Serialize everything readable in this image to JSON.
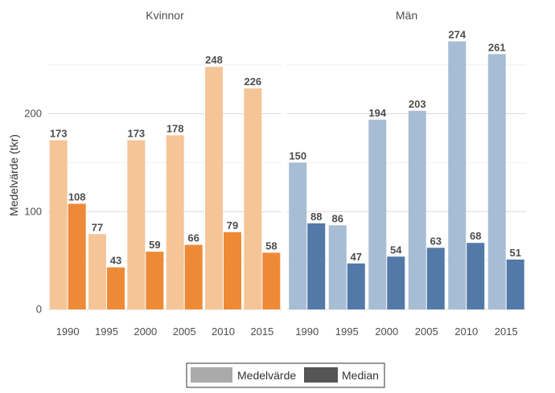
{
  "chart_data": {
    "type": "bar",
    "ylabel": "Medelvärde (tkr)",
    "ylim": [
      0,
      290
    ],
    "yticks": [
      0,
      100,
      200
    ],
    "categories": [
      "1990",
      "1995",
      "2000",
      "2005",
      "2010",
      "2015"
    ],
    "facets": [
      {
        "title": "Kvinnor",
        "colors": {
          "Medelvärde": "#f5c598",
          "Median": "#ee8a36"
        },
        "series": [
          {
            "name": "Medelvärde",
            "values": [
              173,
              77,
              173,
              178,
              248,
              226
            ]
          },
          {
            "name": "Median",
            "values": [
              108,
              43,
              59,
              66,
              79,
              58
            ]
          }
        ]
      },
      {
        "title": "Män",
        "colors": {
          "Medelvärde": "#a7bdd5",
          "Median": "#5279a8"
        },
        "series": [
          {
            "name": "Medelvärde",
            "values": [
              150,
              86,
              194,
              203,
              274,
              261
            ]
          },
          {
            "name": "Median",
            "values": [
              88,
              47,
              54,
              63,
              68,
              51
            ]
          }
        ]
      }
    ],
    "legend": {
      "position": "bottom",
      "items": [
        {
          "name": "Medelvärde",
          "color": "#aaaaaa"
        },
        {
          "name": "Median",
          "color": "#555555"
        }
      ]
    },
    "grid": true
  }
}
